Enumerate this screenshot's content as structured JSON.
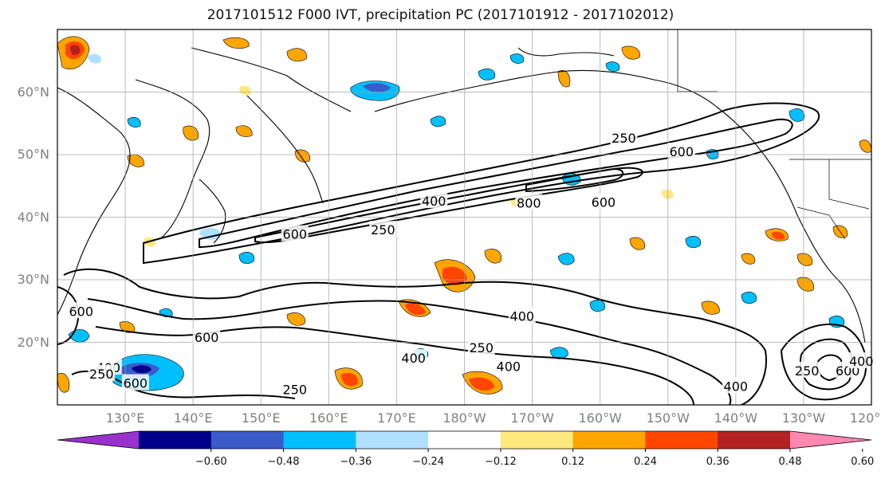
{
  "title": "2017101512 F000 IVT, precipitation PC (2017101912 - 2017102012)",
  "map": {
    "projection": "PlateCarree",
    "lon_range": [
      120,
      240
    ],
    "lat_range": [
      10,
      70
    ],
    "lat_ticks": [
      {
        "lat": 20,
        "label": "20°N"
      },
      {
        "lat": 30,
        "label": "30°N"
      },
      {
        "lat": 40,
        "label": "40°N"
      },
      {
        "lat": 50,
        "label": "50°N"
      },
      {
        "lat": 60,
        "label": "60°N"
      }
    ],
    "lon_ticks": [
      {
        "lon": 130,
        "label": "130°E"
      },
      {
        "lon": 140,
        "label": "140°E"
      },
      {
        "lon": 150,
        "label": "150°E"
      },
      {
        "lon": 160,
        "label": "160°E"
      },
      {
        "lon": 170,
        "label": "170°E"
      },
      {
        "lon": 180,
        "label": "180°W"
      },
      {
        "lon": 190,
        "label": "170°W"
      },
      {
        "lon": 200,
        "label": "160°W"
      },
      {
        "lon": 210,
        "label": "150°W"
      },
      {
        "lon": 220,
        "label": "140°W"
      },
      {
        "lon": 230,
        "label": "130°W"
      },
      {
        "lon": 240,
        "label": "120°W"
      }
    ],
    "grid": true
  },
  "ivt_contour_labels": [
    {
      "text": "400",
      "lon": 175.5,
      "lat": 42.6
    },
    {
      "text": "800",
      "lon": 189.5,
      "lat": 42.3
    },
    {
      "text": "600",
      "lon": 200.5,
      "lat": 42.4
    },
    {
      "text": "250",
      "lon": 203.5,
      "lat": 52.7
    },
    {
      "text": "600",
      "lon": 212.0,
      "lat": 50.5
    },
    {
      "text": "600",
      "lon": 155.0,
      "lat": 37.3
    },
    {
      "text": "250",
      "lon": 168.0,
      "lat": 38.0
    },
    {
      "text": "600",
      "lon": 142.0,
      "lat": 20.8
    },
    {
      "text": "400",
      "lon": 188.5,
      "lat": 24.2
    },
    {
      "text": "250",
      "lon": 182.5,
      "lat": 19.2
    },
    {
      "text": "400",
      "lon": 172.5,
      "lat": 17.5
    },
    {
      "text": "400",
      "lon": 186.5,
      "lat": 16.2
    },
    {
      "text": "250",
      "lon": 155.0,
      "lat": 12.5
    },
    {
      "text": "600",
      "lon": 131.5,
      "lat": 13.5
    },
    {
      "text": "400",
      "lon": 127.5,
      "lat": 16.0
    },
    {
      "text": "250",
      "lon": 126.5,
      "lat": 15.0
    },
    {
      "text": "600",
      "lon": 123.5,
      "lat": 25.0
    },
    {
      "text": "400",
      "lon": 220.0,
      "lat": 13.0
    },
    {
      "text": "250",
      "lon": 230.5,
      "lat": 15.5
    },
    {
      "text": "600",
      "lon": 236.5,
      "lat": 15.5
    },
    {
      "text": "400",
      "lon": 238.5,
      "lat": 17.0
    }
  ],
  "colorbar": {
    "colors": [
      "#9932cc",
      "#00008b",
      "#3a5bc9",
      "#00bfff",
      "#b0e0ff",
      "#ffffff",
      "#ffe97f",
      "#ffa500",
      "#ff4500",
      "#b22222",
      "#ff88b0"
    ],
    "tick_labels": [
      "−0.60",
      "−0.48",
      "−0.36",
      "−0.24",
      "−0.12",
      "0.12",
      "0.24",
      "0.36",
      "0.48",
      "0.60"
    ]
  }
}
